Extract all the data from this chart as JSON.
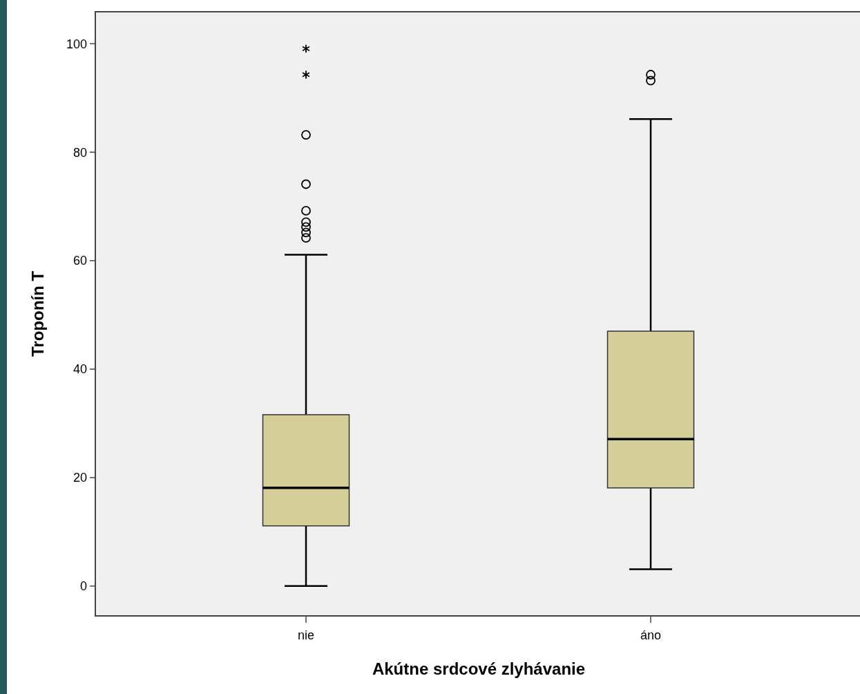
{
  "chart_data": {
    "type": "box",
    "xlabel": "Akútne srdcové zlyhávanie",
    "ylabel": "Troponín T",
    "categories": [
      "nie",
      "áno"
    ],
    "color": "#d4cf98",
    "ylim": [
      -5.5,
      105.9
    ],
    "yticks": [
      0,
      20,
      40,
      60,
      80,
      100
    ],
    "grid": false,
    "boxes": [
      {
        "low": 0,
        "q1": 11.1,
        "median": 18.1,
        "q3": 31.6,
        "high": 61.1,
        "outliers": [
          99.1,
          94.3,
          83.2,
          74.1,
          69.2,
          67.1,
          66.2,
          65.2,
          64.2
        ]
      },
      {
        "low": 3.1,
        "q1": 18.1,
        "median": 27.1,
        "q3": 47,
        "high": 86.1,
        "outliers": [
          94.3,
          93.2
        ]
      }
    ]
  }
}
